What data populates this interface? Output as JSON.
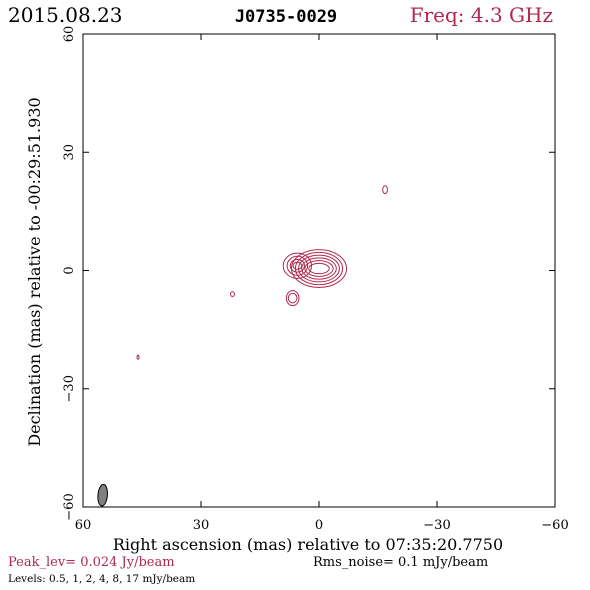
{
  "header": {
    "date": "2015.08.23",
    "source": "J0735-0029",
    "freq": "Freq: 4.3 GHz"
  },
  "axes": {
    "xlabel": "Right ascension (mas) relative to 07:35:20.7750",
    "ylabel": "Declination (mas) relative to -00:29:51.930"
  },
  "footer": {
    "peak": "Peak_lev=  0.024 Jy/beam",
    "rms": "Rms_noise=   0.1 mJy/beam",
    "levels": "Levels: 0.5,    1,    2,    4,    8,   17 mJy/beam"
  },
  "colors": {
    "contour": "#b0284e",
    "header_freq": "#b0284e",
    "footer_peak": "#b0284e",
    "text": "#000000",
    "beam_fill": "#808080"
  },
  "chart_data": {
    "type": "contour",
    "x_axis": {
      "label": "Right ascension (mas) relative to 07:35:20.7750",
      "range": [
        60,
        -60
      ],
      "ticks": [
        60,
        30,
        0,
        -30,
        -60
      ]
    },
    "y_axis": {
      "label": "Declination (mas) relative to -00:29:51.930",
      "range": [
        -60,
        60
      ],
      "ticks": [
        -60,
        -30,
        0,
        30,
        60
      ]
    },
    "contour_levels_mJy_per_beam": [
      0.5,
      1,
      2,
      4,
      8,
      17
    ],
    "peak_Jy_per_beam": 0.024,
    "rms_noise_mJy_per_beam": 0.1,
    "components": [
      {
        "name": "core",
        "x": 0,
        "y": 0.5,
        "rx": [
          7,
          6,
          5.2,
          4.4,
          3.6,
          2.6
        ],
        "ry": [
          4.8,
          4.1,
          3.4,
          2.7,
          2.0,
          1.3
        ]
      },
      {
        "name": "east-knot",
        "x": 5.5,
        "y": 1.2,
        "rx": [
          3.6,
          2.6,
          1.8,
          1.1
        ],
        "ry": [
          3.2,
          2.4,
          1.6,
          0.9
        ]
      },
      {
        "name": "south-blob",
        "x": 6.7,
        "y": -7,
        "rx": [
          1.6,
          1.1
        ],
        "ry": [
          1.9,
          1.2
        ]
      },
      {
        "name": "ne-spot",
        "x": -16.8,
        "y": 20.5,
        "rx": [
          0.6
        ],
        "ry": [
          1.0
        ]
      },
      {
        "name": "w-spot",
        "x": 22,
        "y": -6,
        "rx": [
          0.5
        ],
        "ry": [
          0.6
        ]
      },
      {
        "name": "sw-speck",
        "x": 46,
        "y": -22,
        "rx": [
          0.25
        ],
        "ry": [
          0.5
        ]
      }
    ],
    "beam": {
      "x": 55,
      "y": -57,
      "major_mas": 5.5,
      "minor_mas": 2.4,
      "pa_deg": 5
    }
  }
}
